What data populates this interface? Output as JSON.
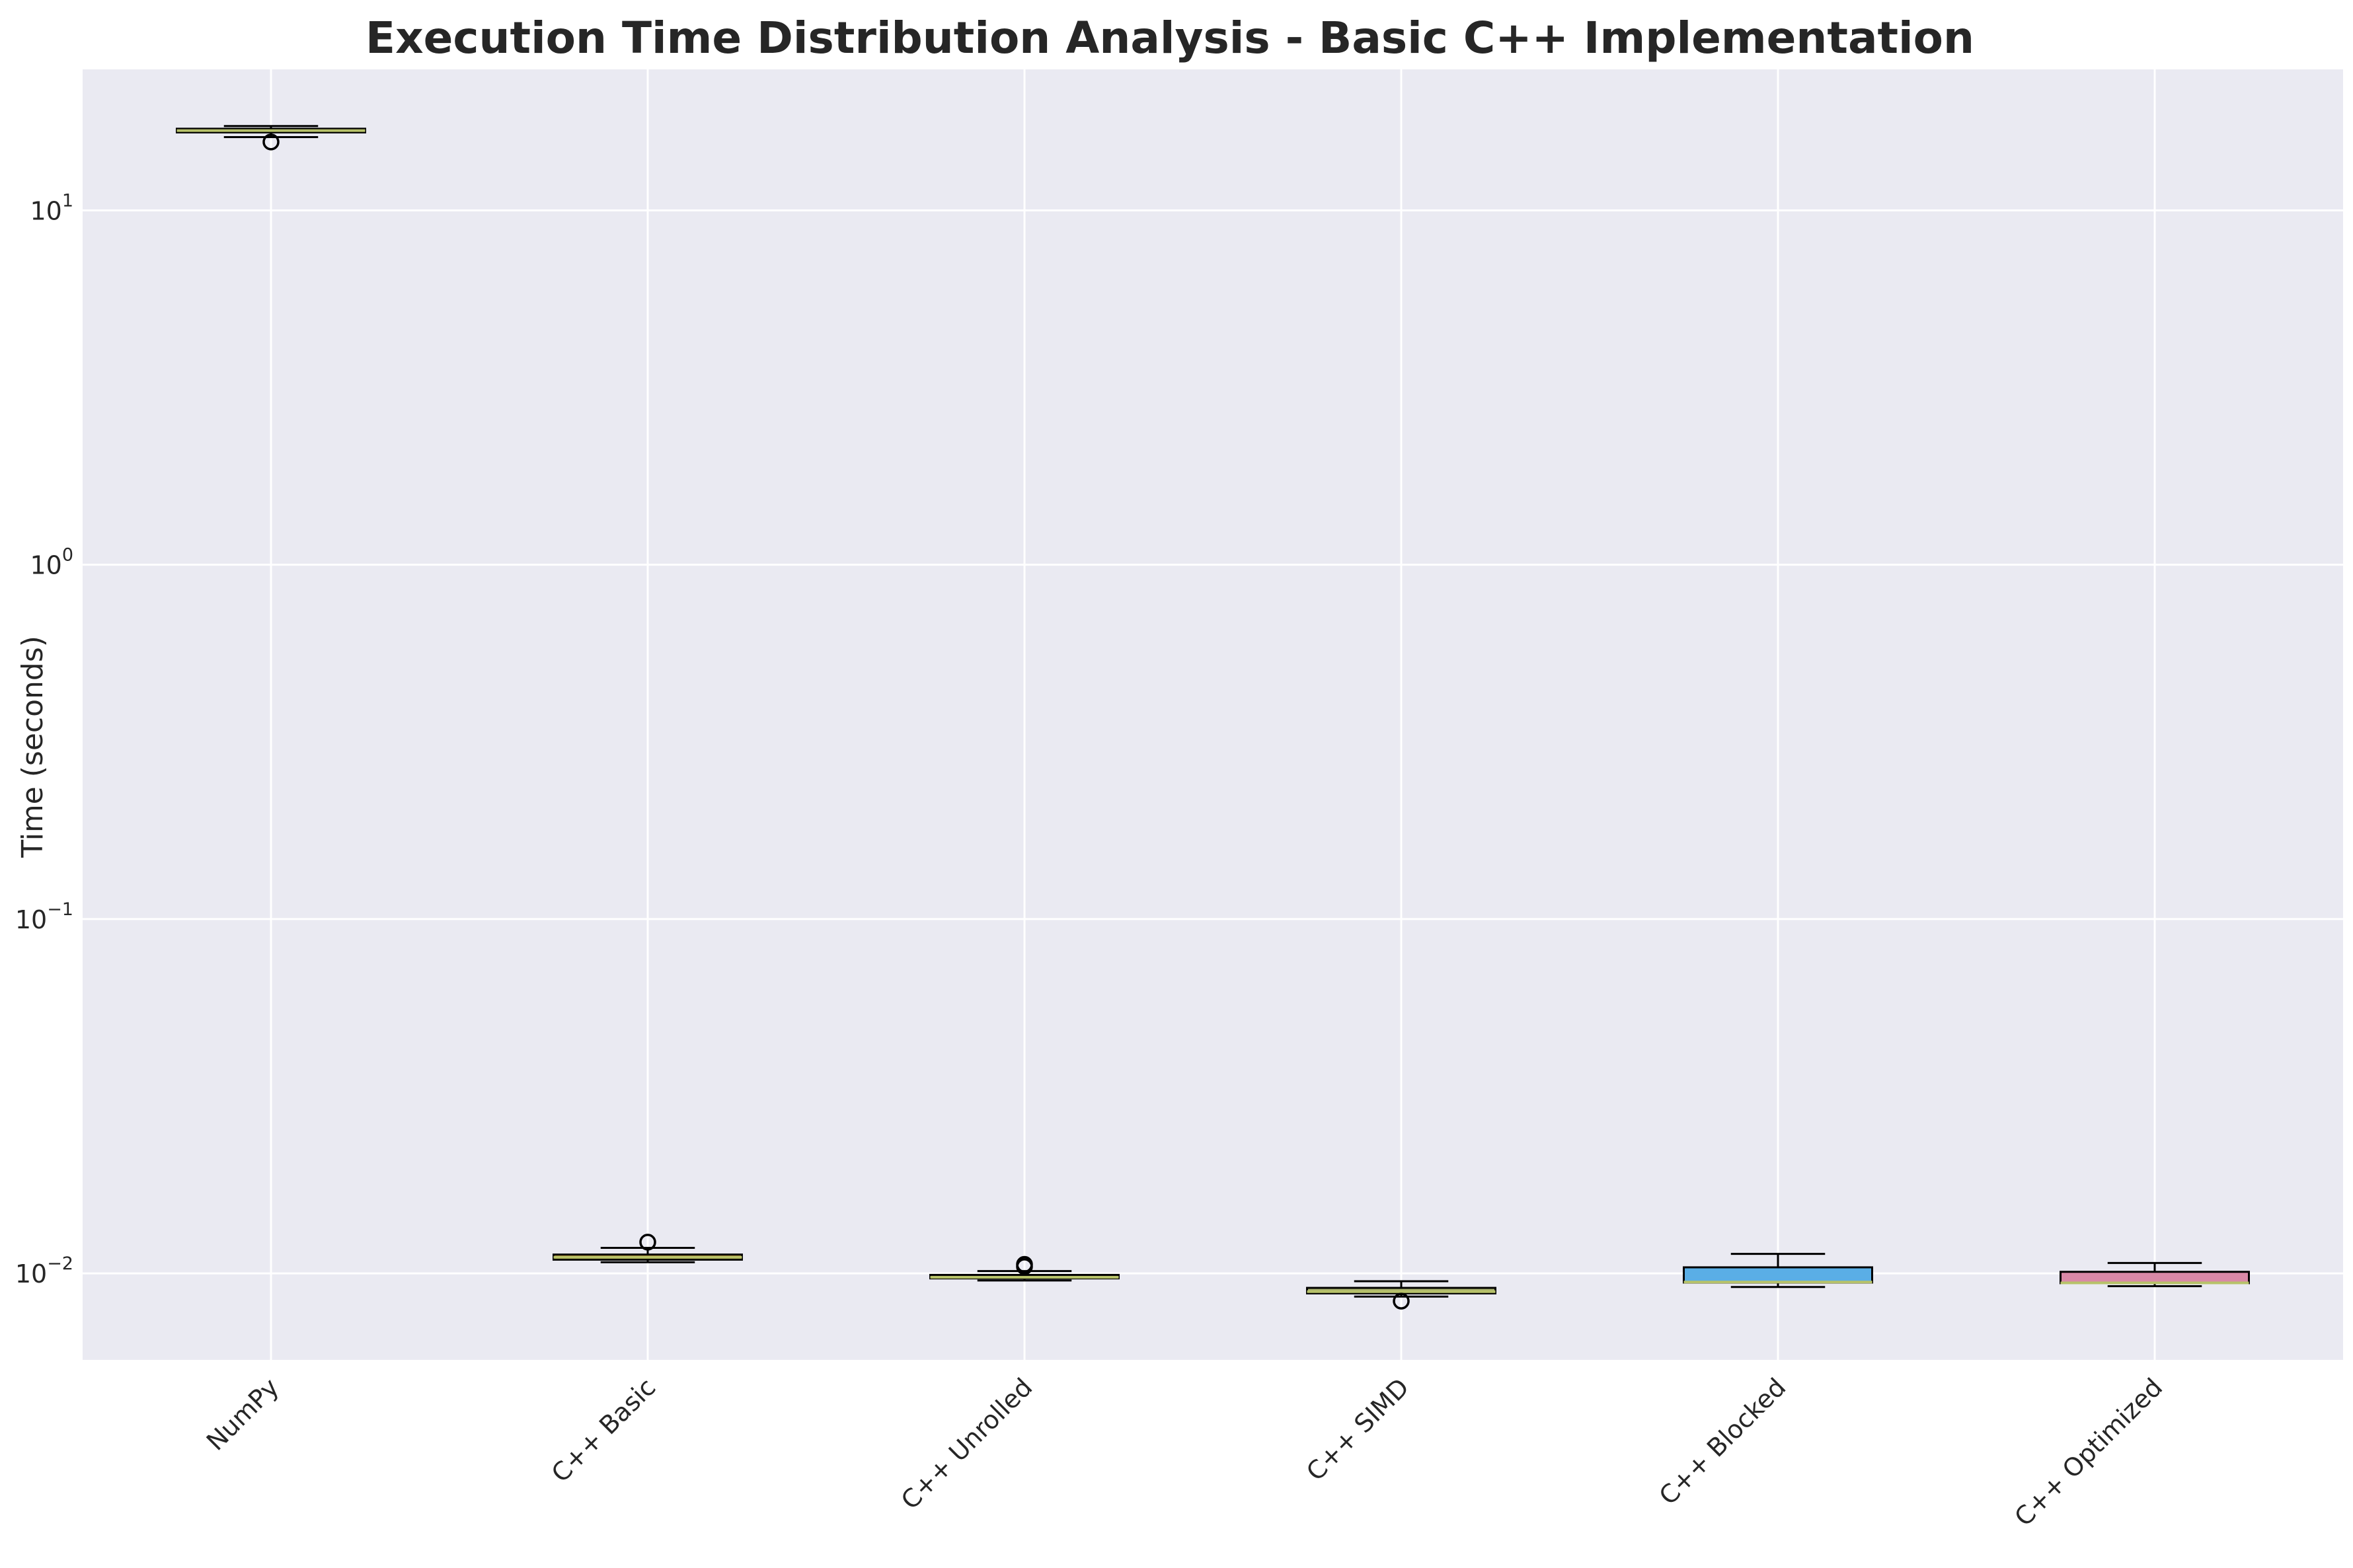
{
  "chart_data": {
    "type": "box",
    "title": "Execution Time Distribution Analysis - Basic C++ Implementation",
    "xlabel": "",
    "ylabel": "Time (seconds)",
    "yscale": "log",
    "ylim": [
      0.0057,
      25
    ],
    "yticks": [
      {
        "value": 10,
        "base": "10",
        "exp": "1"
      },
      {
        "value": 1,
        "base": "10",
        "exp": "0"
      },
      {
        "value": 0.1,
        "base": "10",
        "exp": "−1"
      },
      {
        "value": 0.01,
        "base": "10",
        "exp": "−2"
      }
    ],
    "grid": true,
    "categories": [
      "NumPy",
      "C++ Basic",
      "C++ Unrolled",
      "C++ SIMD",
      "C++ Blocked",
      "C++ Optimized"
    ],
    "boxes": [
      {
        "name": "NumPy",
        "whisker_low": 16.1,
        "q1": 16.6,
        "median": 16.8,
        "q3": 17.0,
        "whisker_high": 17.3,
        "outliers": [
          15.6
        ],
        "color": "#d5a537"
      },
      {
        "name": "C++ Basic",
        "whisker_low": 0.01075,
        "q1": 0.01093,
        "median": 0.0111,
        "q3": 0.0113,
        "whisker_high": 0.0118,
        "outliers": [
          0.01225
        ],
        "color": "#c4952e"
      },
      {
        "name": "C++ Unrolled",
        "whisker_low": 0.00955,
        "q1": 0.00968,
        "median": 0.00975,
        "q3": 0.0099,
        "whisker_high": 0.01015,
        "outliers": [
          0.01045,
          0.0106
        ],
        "color": "#c9b24a"
      },
      {
        "name": "C++ SIMD",
        "whisker_low": 0.0086,
        "q1": 0.00878,
        "median": 0.00888,
        "q3": 0.0091,
        "whisker_high": 0.0095,
        "outliers": [
          0.00835
        ],
        "color": "#a8b06d"
      },
      {
        "name": "C++ Blocked",
        "whisker_low": 0.00915,
        "q1": 0.00942,
        "median": 0.00945,
        "q3": 0.0104,
        "whisker_high": 0.01135,
        "outliers": [],
        "color": "#5aaee6"
      },
      {
        "name": "C++ Optimized",
        "whisker_low": 0.0092,
        "q1": 0.00938,
        "median": 0.0094,
        "q3": 0.0101,
        "whisker_high": 0.0107,
        "outliers": [],
        "color": "#d989a7"
      }
    ]
  },
  "style": {
    "plot_background": "#eaeaf2",
    "grid_color": "#ffffff",
    "median_color": "#b7c26a",
    "edge_color": "#000000"
  }
}
